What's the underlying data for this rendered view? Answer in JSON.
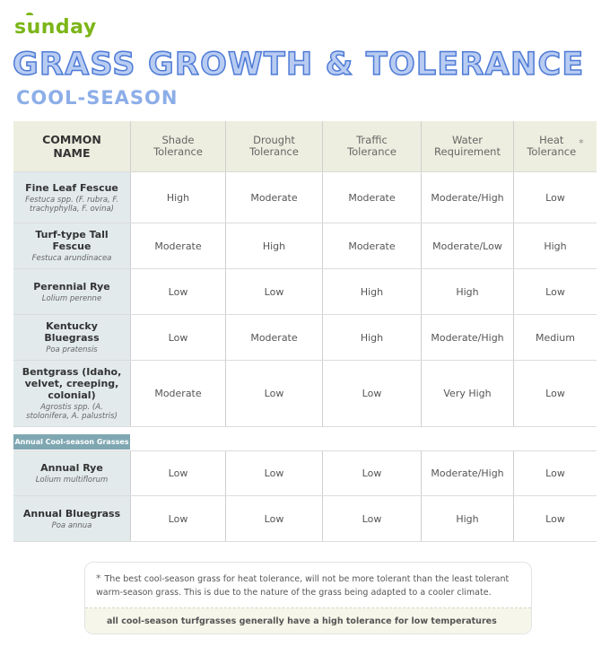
{
  "brand": "sunday",
  "title": "GRASS GROWTH & TOLERANCE",
  "subtitle": "COOL-SEASON",
  "headers": [
    "COMMON NAME",
    "Shade Tolerance",
    "Drought Tolerance",
    "Traffic Tolerance",
    "Water Requirement",
    "Heat Tolerance"
  ],
  "header_lines": [
    [
      "COMMON",
      "NAME"
    ],
    [
      "Shade",
      "Tolerance"
    ],
    [
      "Drought",
      "Tolerance"
    ],
    [
      "Traffic",
      "Tolerance"
    ],
    [
      "Water",
      "Requirement"
    ],
    [
      "Heat",
      "Tolerance"
    ]
  ],
  "heat_note_marker": "*",
  "section_label": "Annual Cool-season Grasses",
  "rows": [
    {
      "name": "Fine Leaf Fescue",
      "latin": "Festuca spp. (F. rubra, F. trachyphylla, F. ovina)",
      "values": [
        "High",
        "Moderate",
        "Moderate",
        "Moderate/High",
        "Low"
      ]
    },
    {
      "name": "Turf-type Tall Fescue",
      "latin": "Festuca arundinacea",
      "values": [
        "Moderate",
        "High",
        "Moderate",
        "Moderate/Low",
        "High"
      ]
    },
    {
      "name": "Perennial Rye",
      "latin": "Lolium perenne",
      "values": [
        "Low",
        "Low",
        "High",
        "High",
        "Low"
      ]
    },
    {
      "name": "Kentucky Bluegrass",
      "latin": "Poa pratensis",
      "values": [
        "Low",
        "Moderate",
        "High",
        "Moderate/High",
        "Medium"
      ]
    },
    {
      "name": "Bentgrass (Idaho, velvet, creeping, colonial)",
      "latin": "Agrostis spp. (A. stolonifera, A. palustris)",
      "values": [
        "Moderate",
        "Low",
        "Low",
        "Very High",
        "Low"
      ]
    }
  ],
  "annual_rows": [
    {
      "name": "Annual Rye",
      "latin": "Lolium multiflorum",
      "values": [
        "Low",
        "Low",
        "Low",
        "Moderate/High",
        "Low"
      ]
    },
    {
      "name": "Annual Bluegrass",
      "latin": "Poa annua",
      "values": [
        "Low",
        "Low",
        "Low",
        "High",
        "Low"
      ]
    }
  ],
  "footnote": {
    "marker": "*",
    "text": "The best cool-season grass for heat tolerance, will not be more tolerant than the least tolerant warm-season grass. This is due to the nature of the grass being adapted to a cooler climate.",
    "bottom": "all cool-season turfgrasses generally have a high tolerance for low temperatures"
  }
}
